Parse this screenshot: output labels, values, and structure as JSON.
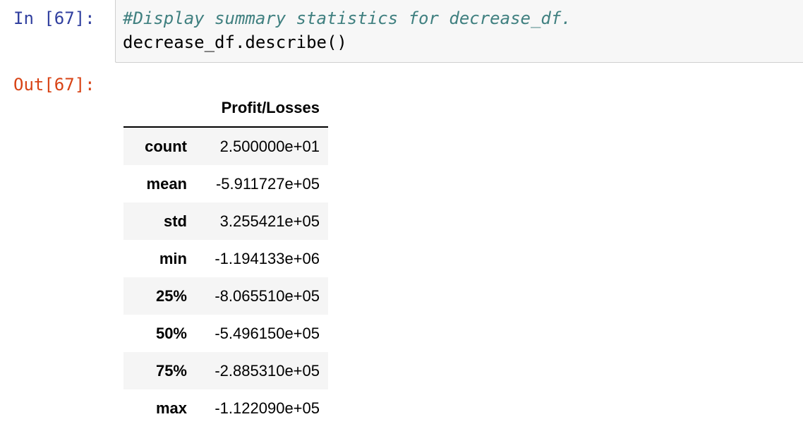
{
  "cell": {
    "in_prompt": "In [67]:",
    "out_prompt": "Out[67]:",
    "code_comment": "#Display summary statistics for decrease_df.",
    "code_statement": "decrease_df.describe()"
  },
  "table": {
    "index_header": "",
    "column_header": "Profit/Losses",
    "rows": [
      {
        "label": "count",
        "value": "2.500000e+01"
      },
      {
        "label": "mean",
        "value": "-5.911727e+05"
      },
      {
        "label": "std",
        "value": "3.255421e+05"
      },
      {
        "label": "min",
        "value": "-1.194133e+06"
      },
      {
        "label": "25%",
        "value": "-8.065510e+05"
      },
      {
        "label": "50%",
        "value": "-5.496150e+05"
      },
      {
        "label": "75%",
        "value": "-2.885310e+05"
      },
      {
        "label": "max",
        "value": "-1.122090e+05"
      }
    ]
  },
  "colors": {
    "in_prompt": "#303f9f",
    "out_prompt": "#d84315",
    "comment": "#408080",
    "input_background": "#f7f7f7",
    "striped_row": "#f5f5f5"
  }
}
